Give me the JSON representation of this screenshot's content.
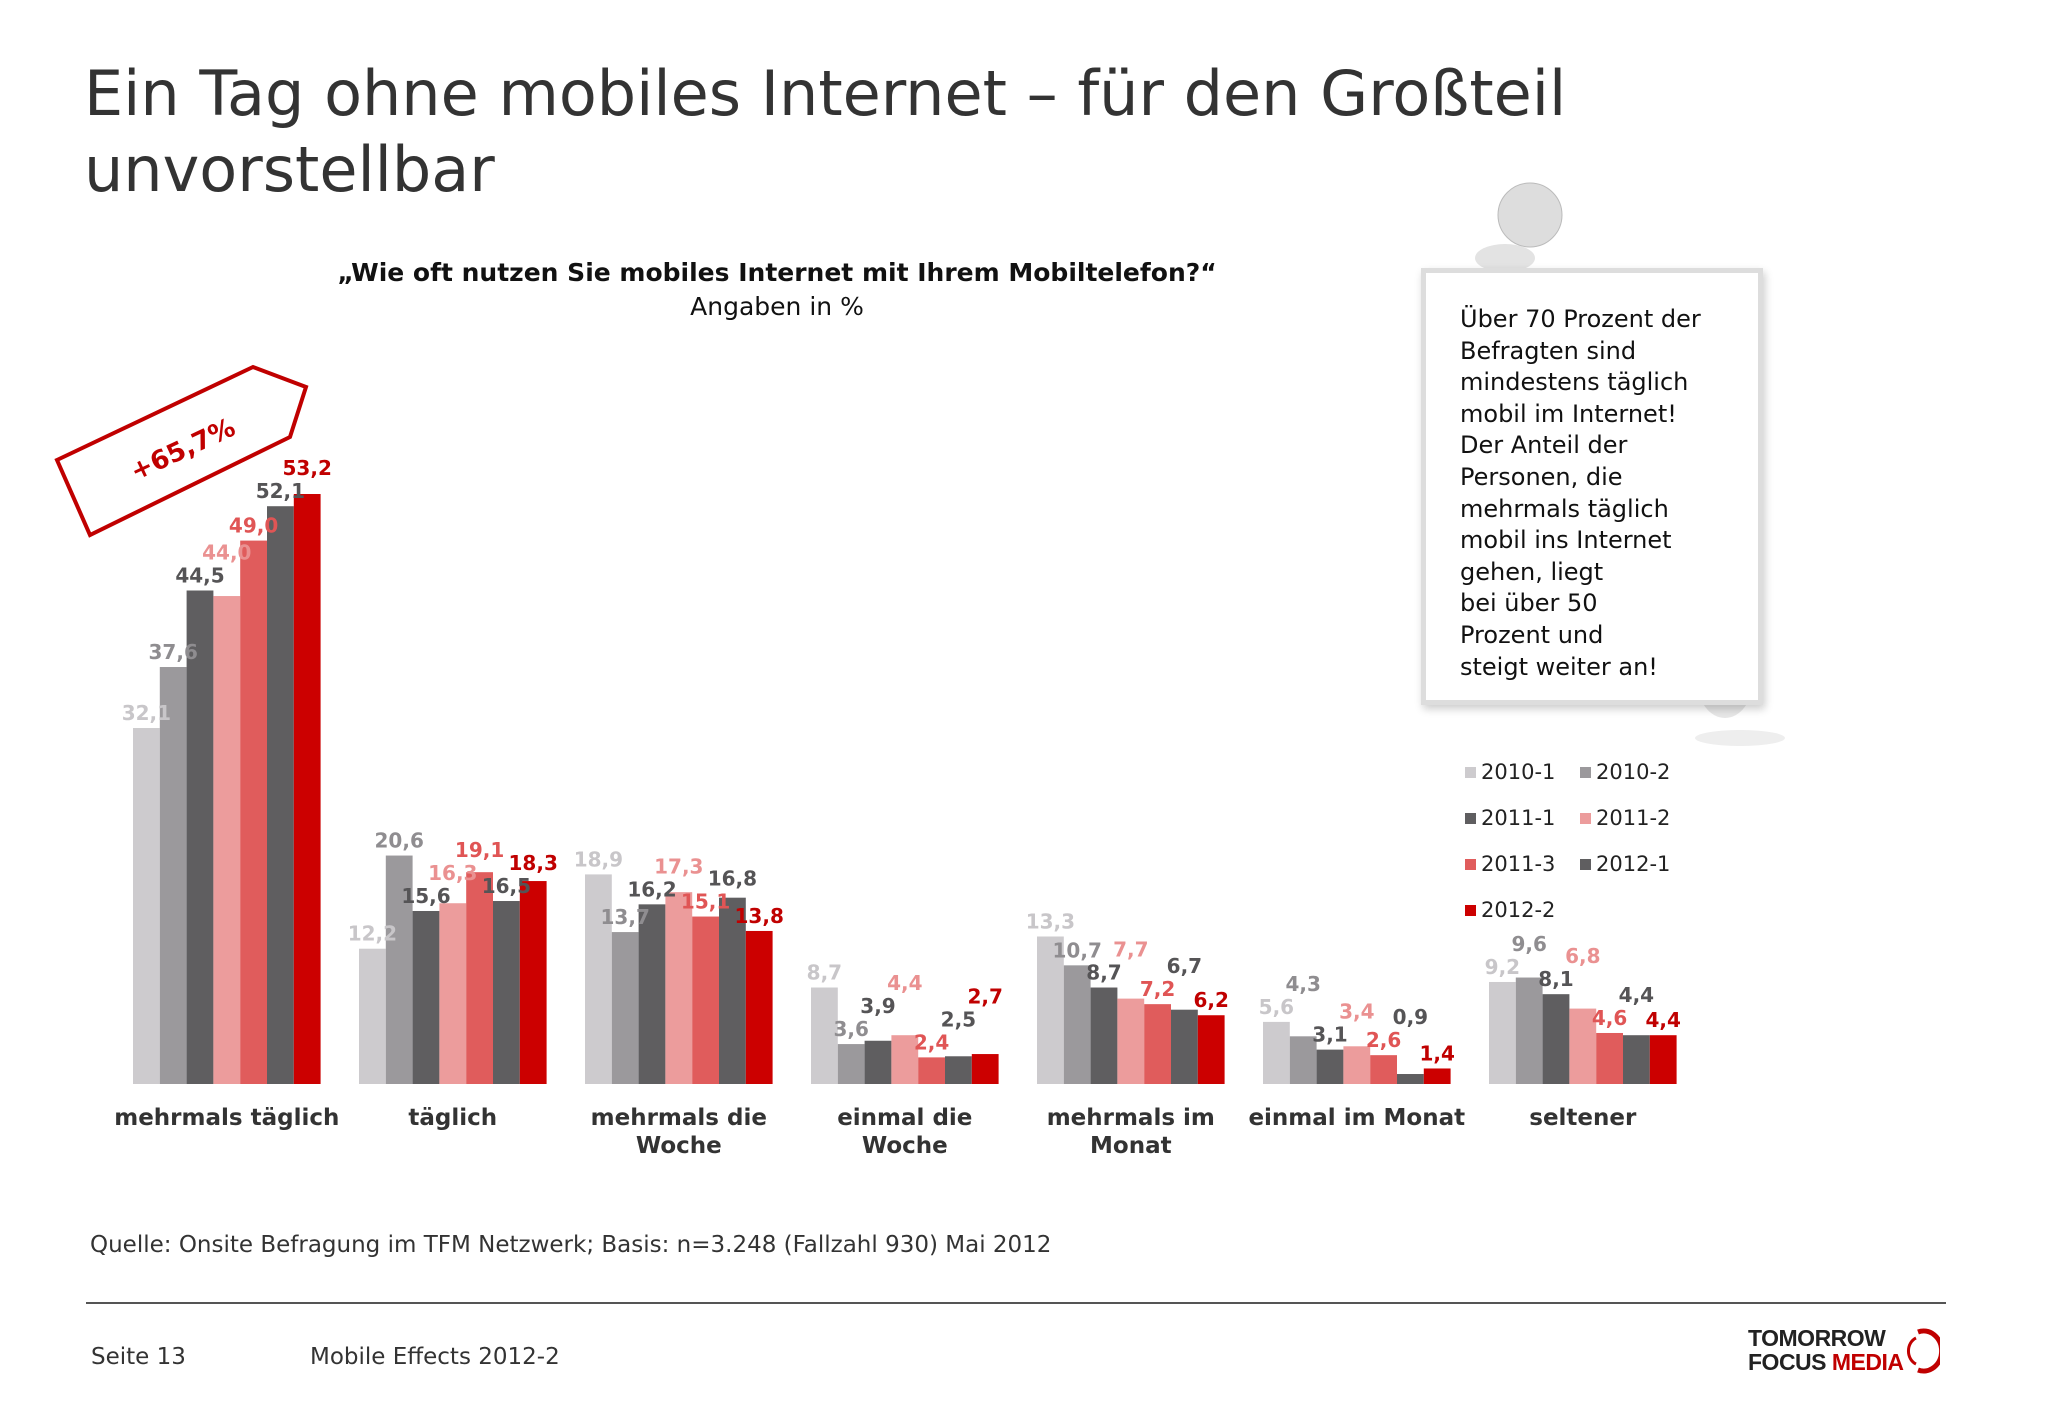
{
  "slide": {
    "title_line1": "Ein Tag ohne mobiles Internet – für den Großteil",
    "title_line2": "unvorstellbar",
    "question": "„Wie oft nutzen Sie mobiles Internet mit Ihrem Mobiltelefon?“",
    "unit": "Angaben in %",
    "badge": "+65,7%",
    "note": [
      "Über 70 Prozent der",
      "Befragten sind",
      "mindestens täglich",
      "mobil im Internet!",
      "Der Anteil der",
      "Personen, die",
      "mehrmals täglich",
      "mobil ins Internet",
      "gehen, liegt",
      "bei über 50",
      "Prozent und",
      "steigt weiter an!"
    ],
    "source": "Quelle: Onsite Befragung im TFM Netzwerk; Basis: n=3.248 (Fallzahl 930) Mai 2012",
    "page": "Seite 13",
    "report": "Mobile Effects 2012-2",
    "logo": {
      "line1": "TOMORROW",
      "line2a": "FOCUS ",
      "line2b": "MEDIA"
    }
  },
  "chart_data": {
    "type": "bar",
    "title": "„Wie oft nutzen Sie mobiles Internet mit Ihrem Mobiltelefon?“",
    "ylabel": "Angaben in %",
    "ylim": [
      0,
      55
    ],
    "grid": false,
    "legend_position": "right",
    "categories": [
      [
        "mehrmals täglich"
      ],
      [
        "täglich"
      ],
      [
        "mehrmals die",
        "Woche"
      ],
      [
        "einmal die",
        "Woche"
      ],
      [
        "mehrmals im",
        "Monat"
      ],
      [
        "einmal im Monat"
      ],
      [
        "seltener"
      ]
    ],
    "series": [
      {
        "name": "2010-1",
        "color": "#cdcbce",
        "label_color": "#c8c6c9",
        "values": [
          32.1,
          12.2,
          18.9,
          8.7,
          13.3,
          5.6,
          9.2
        ],
        "labels": [
          "32,1",
          "12,2",
          "18,9",
          "8,7",
          "13,3",
          "5,6",
          "9,2"
        ]
      },
      {
        "name": "2010-2",
        "color": "#9b999c",
        "label_color": "#8f8d90",
        "values": [
          37.6,
          20.6,
          13.7,
          3.6,
          10.7,
          4.3,
          9.6
        ],
        "labels": [
          "37,6",
          "20,6",
          "13,7",
          "3,6",
          "10,7",
          "4,3",
          "9,6"
        ]
      },
      {
        "name": "2011-1",
        "color": "#5f5e60",
        "label_color": "#555456",
        "values": [
          44.5,
          15.6,
          16.2,
          3.9,
          8.7,
          3.1,
          8.1
        ],
        "labels": [
          "44,5",
          "15,6",
          "16,2",
          "3,9",
          "8,7",
          "3,1",
          "8,1"
        ]
      },
      {
        "name": "2011-2",
        "color": "#ec9c9c",
        "label_color": "#ea9191",
        "values": [
          44.0,
          16.3,
          17.3,
          4.4,
          7.7,
          3.4,
          6.8
        ],
        "labels": [
          "44,0",
          "16,3",
          "17,3",
          "4,4",
          "7,7",
          "3,4",
          "6,8"
        ]
      },
      {
        "name": "2011-3",
        "color": "#e05c5c",
        "label_color": "#e05555",
        "values": [
          49.0,
          19.1,
          15.1,
          2.4,
          7.2,
          2.6,
          4.6
        ],
        "labels": [
          "49,0",
          "19,1",
          "15,1",
          "2,4",
          "7,2",
          "2,6",
          "4,6"
        ]
      },
      {
        "name": "2012-1",
        "color": "#5f5e60",
        "label_color": "#555456",
        "values": [
          52.1,
          16.5,
          16.8,
          2.5,
          6.7,
          0.9,
          4.4
        ],
        "labels": [
          "52,1",
          "16,5",
          "16,8",
          "2,5",
          "6,7",
          "0,9",
          "4,4"
        ]
      },
      {
        "name": "2012-2",
        "color": "#cc0000",
        "label_color": "#c00000",
        "values": [
          53.2,
          18.3,
          13.8,
          2.7,
          6.2,
          1.4,
          4.4
        ],
        "labels": [
          "53,2",
          "18,3",
          "13,8",
          "2,7",
          "6,2",
          "1,4",
          "4,4"
        ]
      }
    ]
  }
}
